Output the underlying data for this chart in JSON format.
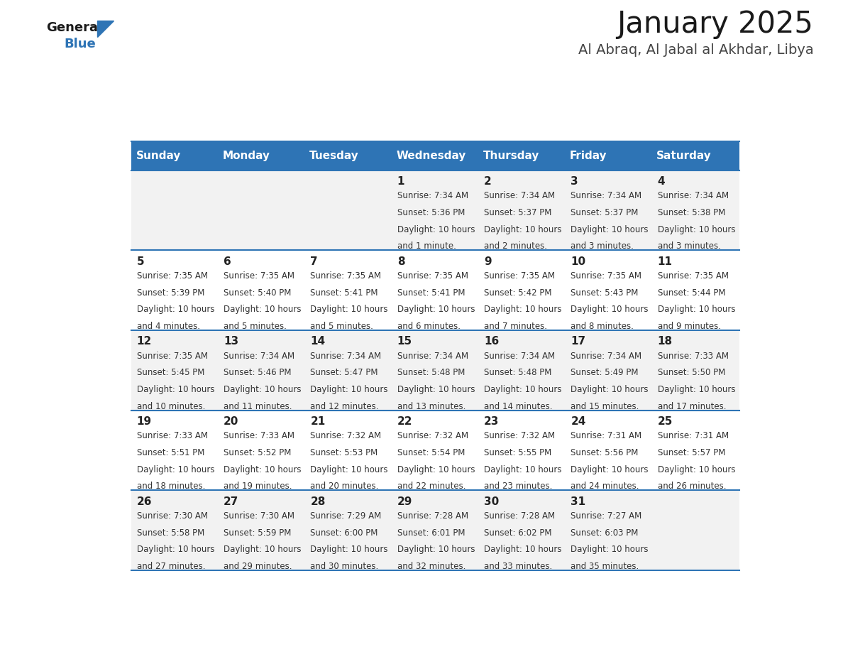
{
  "title": "January 2025",
  "subtitle": "Al Abraq, Al Jabal al Akhdar, Libya",
  "days_of_week": [
    "Sunday",
    "Monday",
    "Tuesday",
    "Wednesday",
    "Thursday",
    "Friday",
    "Saturday"
  ],
  "header_bg": "#2E74B5",
  "header_text": "#FFFFFF",
  "row_bg_odd": "#F2F2F2",
  "row_bg_even": "#FFFFFF",
  "divider_color": "#2E74B5",
  "cell_text_color": "#333333",
  "day_num_color": "#222222",
  "calendar_data": [
    [
      null,
      null,
      null,
      {
        "day": 1,
        "sunrise": "7:34 AM",
        "sunset": "5:36 PM",
        "daylight": "10 hours and 1 minute."
      },
      {
        "day": 2,
        "sunrise": "7:34 AM",
        "sunset": "5:37 PM",
        "daylight": "10 hours and 2 minutes."
      },
      {
        "day": 3,
        "sunrise": "7:34 AM",
        "sunset": "5:37 PM",
        "daylight": "10 hours and 3 minutes."
      },
      {
        "day": 4,
        "sunrise": "7:34 AM",
        "sunset": "5:38 PM",
        "daylight": "10 hours and 3 minutes."
      }
    ],
    [
      {
        "day": 5,
        "sunrise": "7:35 AM",
        "sunset": "5:39 PM",
        "daylight": "10 hours and 4 minutes."
      },
      {
        "day": 6,
        "sunrise": "7:35 AM",
        "sunset": "5:40 PM",
        "daylight": "10 hours and 5 minutes."
      },
      {
        "day": 7,
        "sunrise": "7:35 AM",
        "sunset": "5:41 PM",
        "daylight": "10 hours and 5 minutes."
      },
      {
        "day": 8,
        "sunrise": "7:35 AM",
        "sunset": "5:41 PM",
        "daylight": "10 hours and 6 minutes."
      },
      {
        "day": 9,
        "sunrise": "7:35 AM",
        "sunset": "5:42 PM",
        "daylight": "10 hours and 7 minutes."
      },
      {
        "day": 10,
        "sunrise": "7:35 AM",
        "sunset": "5:43 PM",
        "daylight": "10 hours and 8 minutes."
      },
      {
        "day": 11,
        "sunrise": "7:35 AM",
        "sunset": "5:44 PM",
        "daylight": "10 hours and 9 minutes."
      }
    ],
    [
      {
        "day": 12,
        "sunrise": "7:35 AM",
        "sunset": "5:45 PM",
        "daylight": "10 hours and 10 minutes."
      },
      {
        "day": 13,
        "sunrise": "7:34 AM",
        "sunset": "5:46 PM",
        "daylight": "10 hours and 11 minutes."
      },
      {
        "day": 14,
        "sunrise": "7:34 AM",
        "sunset": "5:47 PM",
        "daylight": "10 hours and 12 minutes."
      },
      {
        "day": 15,
        "sunrise": "7:34 AM",
        "sunset": "5:48 PM",
        "daylight": "10 hours and 13 minutes."
      },
      {
        "day": 16,
        "sunrise": "7:34 AM",
        "sunset": "5:48 PM",
        "daylight": "10 hours and 14 minutes."
      },
      {
        "day": 17,
        "sunrise": "7:34 AM",
        "sunset": "5:49 PM",
        "daylight": "10 hours and 15 minutes."
      },
      {
        "day": 18,
        "sunrise": "7:33 AM",
        "sunset": "5:50 PM",
        "daylight": "10 hours and 17 minutes."
      }
    ],
    [
      {
        "day": 19,
        "sunrise": "7:33 AM",
        "sunset": "5:51 PM",
        "daylight": "10 hours and 18 minutes."
      },
      {
        "day": 20,
        "sunrise": "7:33 AM",
        "sunset": "5:52 PM",
        "daylight": "10 hours and 19 minutes."
      },
      {
        "day": 21,
        "sunrise": "7:32 AM",
        "sunset": "5:53 PM",
        "daylight": "10 hours and 20 minutes."
      },
      {
        "day": 22,
        "sunrise": "7:32 AM",
        "sunset": "5:54 PM",
        "daylight": "10 hours and 22 minutes."
      },
      {
        "day": 23,
        "sunrise": "7:32 AM",
        "sunset": "5:55 PM",
        "daylight": "10 hours and 23 minutes."
      },
      {
        "day": 24,
        "sunrise": "7:31 AM",
        "sunset": "5:56 PM",
        "daylight": "10 hours and 24 minutes."
      },
      {
        "day": 25,
        "sunrise": "7:31 AM",
        "sunset": "5:57 PM",
        "daylight": "10 hours and 26 minutes."
      }
    ],
    [
      {
        "day": 26,
        "sunrise": "7:30 AM",
        "sunset": "5:58 PM",
        "daylight": "10 hours and 27 minutes."
      },
      {
        "day": 27,
        "sunrise": "7:30 AM",
        "sunset": "5:59 PM",
        "daylight": "10 hours and 29 minutes."
      },
      {
        "day": 28,
        "sunrise": "7:29 AM",
        "sunset": "6:00 PM",
        "daylight": "10 hours and 30 minutes."
      },
      {
        "day": 29,
        "sunrise": "7:28 AM",
        "sunset": "6:01 PM",
        "daylight": "10 hours and 32 minutes."
      },
      {
        "day": 30,
        "sunrise": "7:28 AM",
        "sunset": "6:02 PM",
        "daylight": "10 hours and 33 minutes."
      },
      {
        "day": 31,
        "sunrise": "7:27 AM",
        "sunset": "6:03 PM",
        "daylight": "10 hours and 35 minutes."
      },
      null
    ]
  ]
}
